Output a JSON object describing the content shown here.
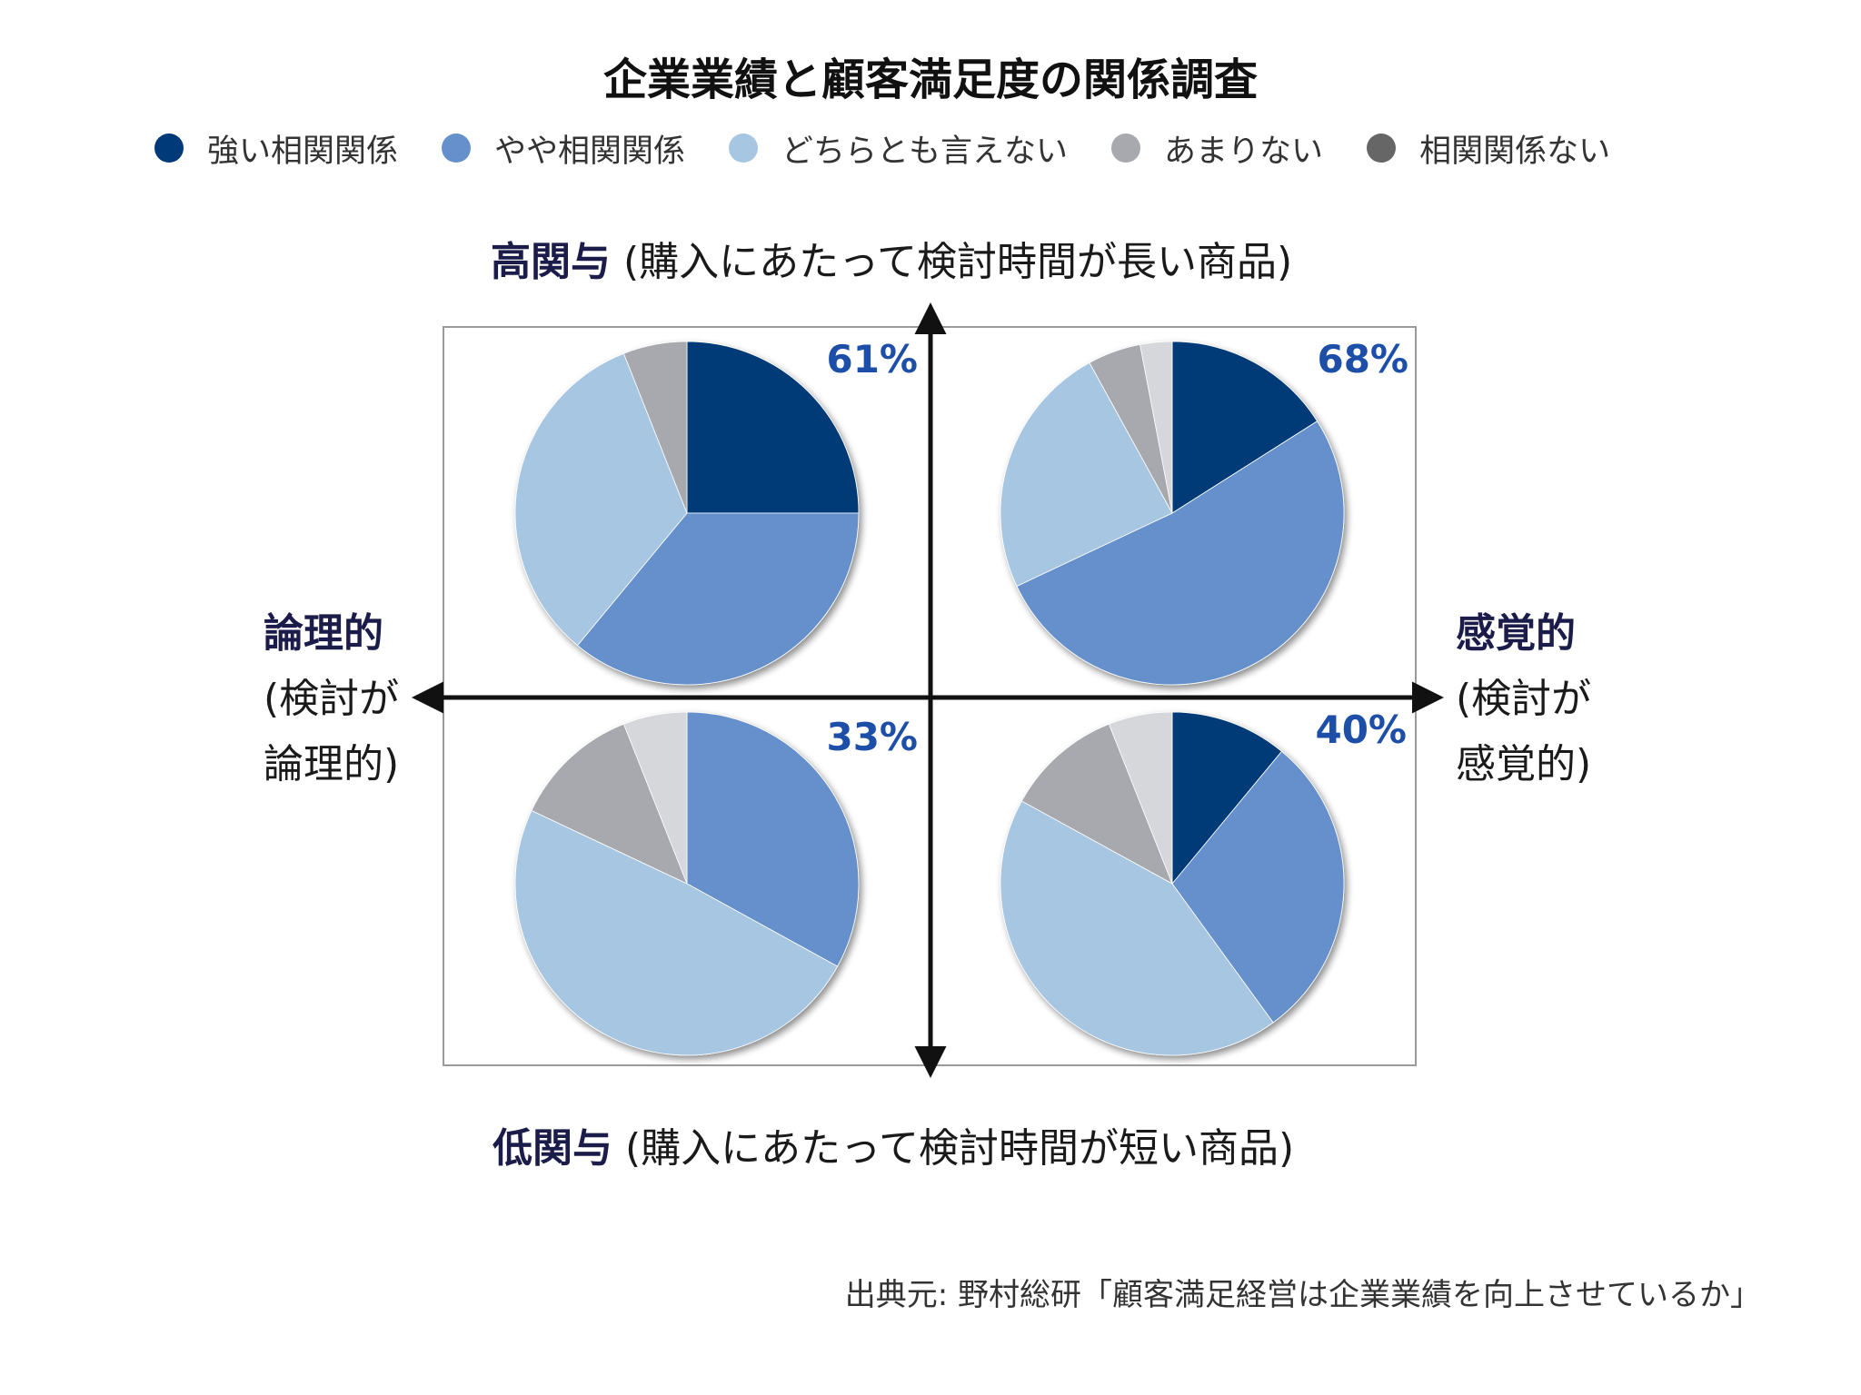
{
  "title": "企業業績と顧客満足度の関係調査",
  "legend": [
    {
      "label": "強い相関関係",
      "color": "#003a78"
    },
    {
      "label": "やや相関関係",
      "color": "#6590cc"
    },
    {
      "label": "どちらとも言えない",
      "color": "#a7c6e2"
    },
    {
      "label": "あまりない",
      "color": "#a8a9ae"
    },
    {
      "label": "相関関係ない",
      "color": "#666666"
    }
  ],
  "axes": {
    "top_bold": "高関与",
    "top_text": "(購入にあたって検討時間が長い商品)",
    "bottom_bold": "低関与",
    "bottom_text": "(購入にあたって検討時間が短い商品)",
    "left_bold": "論理的",
    "left_line1": "(検討が",
    "left_line2": "論理的)",
    "right_bold": "感覚的",
    "right_line1": "(検討が",
    "right_line2": "感覚的)"
  },
  "source": "出典元: 野村総研「顧客満足経営は企業業績を向上させているか」",
  "chart_data": {
    "type": "pie",
    "categories": [
      "強い相関関係",
      "やや相関関係",
      "どちらとも言えない",
      "あまりない",
      "相関関係ない"
    ],
    "charts": [
      {
        "quadrant": "高関与・論理的",
        "percent_label": "61%",
        "values": [
          25,
          36,
          33,
          6,
          0
        ]
      },
      {
        "quadrant": "高関与・感覚的",
        "percent_label": "68%",
        "values": [
          16,
          52,
          24,
          5,
          3
        ]
      },
      {
        "quadrant": "低関与・論理的",
        "percent_label": "33%",
        "values": [
          0,
          33,
          49,
          12,
          6
        ]
      },
      {
        "quadrant": "低関与・感覚的",
        "percent_label": "40%",
        "values": [
          11,
          29,
          43,
          11,
          6
        ]
      }
    ]
  }
}
